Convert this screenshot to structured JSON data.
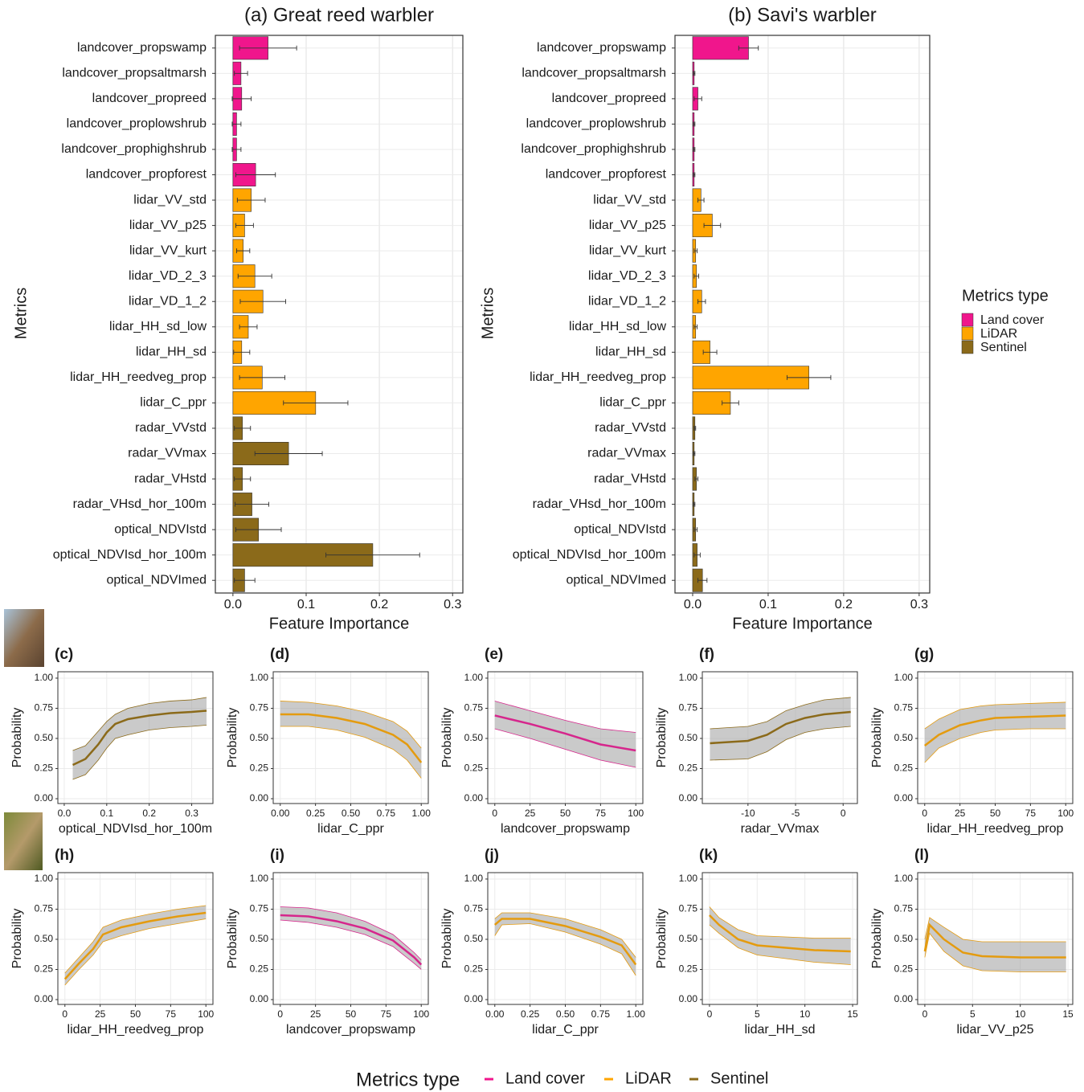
{
  "legend": {
    "title": "Metrics type"
  },
  "chart_data": [
    {
      "type": "bar",
      "orientation": "horizontal",
      "title": "(a) Great reed warbler",
      "xlabel": "Feature Importance",
      "ylabel": "Metrics",
      "categories": [
        "landcover_propswamp",
        "landcover_propsaltmarsh",
        "landcover_propreed",
        "landcover_proplowshrub",
        "landcover_prophighshrub",
        "landcover_propforest",
        "lidar_VV_std",
        "lidar_VV_p25",
        "lidar_VV_kurt",
        "lidar_VD_2_3",
        "lidar_VD_1_2",
        "lidar_HH_sd_low",
        "lidar_HH_sd",
        "lidar_HH_reedveg_prop",
        "lidar_C_ppr",
        "radar_VVstd",
        "radar_VVmax",
        "radar_VHstd",
        "radar_VHsd_hor_100m",
        "optical_NDVIstd",
        "optical_NDVIsd_hor_100m",
        "optical_NDVImed"
      ],
      "series": [
        {
          "name": "Land cover",
          "color": "#f0168c",
          "values": [
            0.048,
            0.011,
            0.012,
            0.005,
            0.005,
            0.031,
            null,
            null,
            null,
            null,
            null,
            null,
            null,
            null,
            null,
            null,
            null,
            null,
            null,
            null,
            null,
            null
          ],
          "errors": [
            0.039,
            0.009,
            0.013,
            0.006,
            0.006,
            0.027,
            null,
            null,
            null,
            null,
            null,
            null,
            null,
            null,
            null,
            null,
            null,
            null,
            null,
            null,
            null,
            null
          ]
        },
        {
          "name": "LiDAR",
          "color": "#ffa500",
          "values": [
            null,
            null,
            null,
            null,
            null,
            null,
            0.025,
            0.016,
            0.014,
            0.03,
            0.041,
            0.021,
            0.012,
            0.04,
            0.113,
            null,
            null,
            null,
            null,
            null,
            null,
            null
          ],
          "errors": [
            null,
            null,
            null,
            null,
            null,
            null,
            0.019,
            0.012,
            0.009,
            0.023,
            0.031,
            0.012,
            0.011,
            0.031,
            0.044,
            null,
            null,
            null,
            null,
            null,
            null,
            null
          ]
        },
        {
          "name": "Sentinel",
          "color": "#8b6a1a",
          "values": [
            null,
            null,
            null,
            null,
            null,
            null,
            null,
            null,
            null,
            null,
            null,
            null,
            null,
            null,
            null,
            0.013,
            0.076,
            0.013,
            0.026,
            0.035,
            0.191,
            0.016
          ],
          "errors": [
            null,
            null,
            null,
            null,
            null,
            null,
            null,
            null,
            null,
            null,
            null,
            null,
            null,
            null,
            null,
            0.011,
            0.046,
            0.011,
            0.023,
            0.031,
            0.064,
            0.014
          ]
        }
      ],
      "xlim": [
        -0.024,
        0.314
      ],
      "xticks": [
        {
          "value": 0,
          "label": "0.0"
        },
        0.1,
        0.2,
        0.3
      ],
      "grid": true
    },
    {
      "type": "bar",
      "orientation": "horizontal",
      "title": "(b) Savi's warbler",
      "xlabel": "Feature Importance",
      "ylabel": "Metrics",
      "categories": [
        "landcover_propswamp",
        "landcover_propsaltmarsh",
        "landcover_propreed",
        "landcover_proplowshrub",
        "landcover_prophighshrub",
        "landcover_propforest",
        "lidar_VV_std",
        "lidar_VV_p25",
        "lidar_VV_kurt",
        "lidar_VD_2_3",
        "lidar_VD_1_2",
        "lidar_HH_sd_low",
        "lidar_HH_sd",
        "lidar_HH_reedveg_prop",
        "lidar_C_ppr",
        "radar_VVstd",
        "radar_VVmax",
        "radar_VHstd",
        "radar_VHsd_hor_100m",
        "optical_NDVIstd",
        "optical_NDVIsd_hor_100m",
        "optical_NDVImed"
      ],
      "series": [
        {
          "name": "Land cover",
          "color": "#f0168c",
          "values": [
            0.074,
            0.002,
            0.007,
            0.002,
            0.002,
            0.002,
            null,
            null,
            null,
            null,
            null,
            null,
            null,
            null,
            null,
            null,
            null,
            null,
            null,
            null,
            null,
            null
          ],
          "errors": [
            0.013,
            0.001,
            0.005,
            0.001,
            0.001,
            0.001,
            null,
            null,
            null,
            null,
            null,
            null,
            null,
            null,
            null,
            null,
            null,
            null,
            null,
            null,
            null,
            null
          ]
        },
        {
          "name": "LiDAR",
          "color": "#ffa500",
          "values": [
            null,
            null,
            null,
            null,
            null,
            null,
            0.011,
            0.026,
            0.004,
            0.005,
            0.012,
            0.004,
            0.023,
            0.154,
            0.05,
            null,
            null,
            null,
            null,
            null,
            null,
            null
          ],
          "errors": [
            null,
            null,
            null,
            null,
            null,
            null,
            0.004,
            0.011,
            0.002,
            0.003,
            0.005,
            0.002,
            0.009,
            0.029,
            0.011,
            null,
            null,
            null,
            null,
            null,
            null,
            null
          ]
        },
        {
          "name": "Sentinel",
          "color": "#8b6a1a",
          "values": [
            null,
            null,
            null,
            null,
            null,
            null,
            null,
            null,
            null,
            null,
            null,
            null,
            null,
            null,
            null,
            0.003,
            0.002,
            0.005,
            0.002,
            0.004,
            0.006,
            0.013
          ],
          "errors": [
            null,
            null,
            null,
            null,
            null,
            null,
            null,
            null,
            null,
            null,
            null,
            null,
            null,
            null,
            null,
            0.001,
            0.001,
            0.002,
            0.001,
            0.002,
            0.004,
            0.006
          ]
        }
      ],
      "xlim": [
        -0.0234,
        0.314
      ],
      "xticks": [
        {
          "value": 0,
          "label": "0.0"
        },
        0.1,
        0.2,
        0.3
      ],
      "grid": true
    },
    {
      "type": "line",
      "title": "(c)",
      "xlabel": "optical_NDVIsd_hor_100m",
      "ylabel": "Probability",
      "color": "#8b6a1a",
      "x": [
        0.02,
        0.05,
        0.08,
        0.1,
        0.12,
        0.15,
        0.2,
        0.25,
        0.3,
        0.335
      ],
      "values": [
        0.28,
        0.33,
        0.45,
        0.55,
        0.62,
        0.66,
        0.69,
        0.71,
        0.72,
        0.73
      ],
      "lower": [
        0.16,
        0.2,
        0.32,
        0.42,
        0.5,
        0.53,
        0.57,
        0.59,
        0.6,
        0.61
      ],
      "upper": [
        0.4,
        0.44,
        0.56,
        0.64,
        0.7,
        0.75,
        0.79,
        0.81,
        0.82,
        0.84
      ],
      "xlim": [
        -0.015,
        0.35
      ],
      "xticks": [
        {
          "value": 0,
          "label": "0.0"
        },
        0.1,
        0.2,
        0.3
      ],
      "ylim": [
        -0.04,
        1.053
      ],
      "yticks": [
        {
          "value": 0,
          "label": "0.00"
        },
        0.25,
        {
          "value": 0.5,
          "label": "0.50"
        },
        0.75,
        {
          "value": 1,
          "label": "1.00"
        }
      ],
      "grid": true
    },
    {
      "type": "line",
      "title": "(d)",
      "xlabel": "lidar_C_ppr",
      "ylabel": "Probability",
      "color": "#e49b0f",
      "x": [
        0,
        0.2,
        0.4,
        0.6,
        0.8,
        0.9,
        1.0
      ],
      "values": [
        0.7,
        0.7,
        0.67,
        0.62,
        0.53,
        0.45,
        0.3
      ],
      "lower": [
        0.6,
        0.6,
        0.57,
        0.51,
        0.41,
        0.32,
        0.17
      ],
      "upper": [
        0.81,
        0.8,
        0.77,
        0.72,
        0.64,
        0.56,
        0.42
      ],
      "xlim": [
        -0.05,
        1.05
      ],
      "xticks": [
        {
          "value": 0,
          "label": "0.00"
        },
        0.25,
        {
          "value": 0.5,
          "label": "0.50"
        },
        0.75,
        {
          "value": 1,
          "label": "1.00"
        }
      ],
      "ylim": [
        -0.04,
        1.053
      ],
      "yticks": [
        {
          "value": 0,
          "label": "0.00"
        },
        0.25,
        {
          "value": 0.5,
          "label": "0.50"
        },
        0.75,
        {
          "value": 1,
          "label": "1.00"
        }
      ],
      "grid": true
    },
    {
      "type": "line",
      "title": "(e)",
      "xlabel": "landcover_propswamp",
      "ylabel": "Probability",
      "color": "#d6268c",
      "x": [
        0,
        25,
        50,
        75,
        100
      ],
      "values": [
        0.69,
        0.62,
        0.54,
        0.45,
        0.4
      ],
      "lower": [
        0.58,
        0.5,
        0.41,
        0.32,
        0.26
      ],
      "upper": [
        0.81,
        0.73,
        0.65,
        0.58,
        0.55
      ],
      "xlim": [
        -5,
        105
      ],
      "xticks": [
        0,
        25,
        50,
        75,
        100
      ],
      "ylim": [
        -0.04,
        1.053
      ],
      "yticks": [
        {
          "value": 0,
          "label": "0.00"
        },
        0.25,
        {
          "value": 0.5,
          "label": "0.50"
        },
        0.75,
        {
          "value": 1,
          "label": "1.00"
        }
      ],
      "grid": true
    },
    {
      "type": "line",
      "title": "(f)",
      "xlabel": "radar_VVmax",
      "ylabel": "Probability",
      "color": "#8b6a1a",
      "x": [
        -14,
        -10,
        -8,
        -6,
        -4,
        -2,
        0.8
      ],
      "values": [
        0.46,
        0.48,
        0.53,
        0.62,
        0.67,
        0.7,
        0.72
      ],
      "lower": [
        0.32,
        0.33,
        0.39,
        0.49,
        0.55,
        0.58,
        0.6
      ],
      "upper": [
        0.58,
        0.6,
        0.64,
        0.73,
        0.78,
        0.82,
        0.84
      ],
      "xlim": [
        -14.8,
        1.5
      ],
      "xticks": [
        -10,
        -5,
        0
      ],
      "ylim": [
        -0.04,
        1.053
      ],
      "yticks": [
        {
          "value": 0,
          "label": "0.00"
        },
        0.25,
        {
          "value": 0.5,
          "label": "0.50"
        },
        0.75,
        {
          "value": 1,
          "label": "1.00"
        }
      ],
      "grid": true
    },
    {
      "type": "line",
      "title": "(g)",
      "xlabel": "lidar_HH_reedveg_prop",
      "ylabel": "Probability",
      "color": "#e49b0f",
      "x": [
        0,
        10,
        25,
        40,
        50,
        75,
        100
      ],
      "values": [
        0.44,
        0.53,
        0.61,
        0.65,
        0.67,
        0.68,
        0.69
      ],
      "lower": [
        0.3,
        0.42,
        0.5,
        0.55,
        0.57,
        0.58,
        0.58
      ],
      "upper": [
        0.58,
        0.66,
        0.74,
        0.77,
        0.78,
        0.79,
        0.8
      ],
      "xlim": [
        -5,
        105
      ],
      "xticks": [
        0,
        25,
        50,
        75,
        100
      ],
      "ylim": [
        -0.04,
        1.053
      ],
      "yticks": [
        {
          "value": 0,
          "label": "0.00"
        },
        0.25,
        {
          "value": 0.5,
          "label": "0.50"
        },
        0.75,
        {
          "value": 1,
          "label": "1.00"
        }
      ],
      "grid": true
    },
    {
      "type": "line",
      "title": "(h)",
      "xlabel": "lidar_HH_reedveg_prop",
      "ylabel": "Probability",
      "color": "#e49b0f",
      "x": [
        0,
        10,
        20,
        27,
        40,
        60,
        80,
        100
      ],
      "values": [
        0.17,
        0.3,
        0.42,
        0.54,
        0.6,
        0.65,
        0.69,
        0.72
      ],
      "lower": [
        0.12,
        0.25,
        0.37,
        0.48,
        0.53,
        0.59,
        0.63,
        0.67
      ],
      "upper": [
        0.22,
        0.35,
        0.48,
        0.6,
        0.66,
        0.71,
        0.75,
        0.78
      ],
      "xlim": [
        -5,
        105
      ],
      "xticks": [
        0,
        25,
        50,
        75,
        100
      ],
      "ylim": [
        -0.04,
        1.053
      ],
      "yticks": [
        {
          "value": 0,
          "label": "0.00"
        },
        0.25,
        {
          "value": 0.5,
          "label": "0.50"
        },
        0.75,
        {
          "value": 1,
          "label": "1.00"
        }
      ],
      "grid": true
    },
    {
      "type": "line",
      "title": "(i)",
      "xlabel": "landcover_propswamp",
      "ylabel": "Probability",
      "color": "#d6268c",
      "x": [
        0,
        20,
        40,
        60,
        80,
        95,
        100
      ],
      "values": [
        0.7,
        0.69,
        0.65,
        0.59,
        0.49,
        0.35,
        0.29
      ],
      "lower": [
        0.66,
        0.64,
        0.6,
        0.54,
        0.44,
        0.3,
        0.25
      ],
      "upper": [
        0.77,
        0.76,
        0.72,
        0.65,
        0.54,
        0.39,
        0.33
      ],
      "xlim": [
        -5,
        105
      ],
      "xticks": [
        0,
        25,
        50,
        75,
        100
      ],
      "ylim": [
        -0.04,
        1.053
      ],
      "yticks": [
        {
          "value": 0,
          "label": "0.00"
        },
        0.25,
        {
          "value": 0.5,
          "label": "0.50"
        },
        0.75,
        {
          "value": 1,
          "label": "1.00"
        }
      ],
      "grid": true
    },
    {
      "type": "line",
      "title": "(j)",
      "xlabel": "lidar_C_ppr",
      "ylabel": "Probability",
      "color": "#e49b0f",
      "x": [
        0,
        0.05,
        0.25,
        0.5,
        0.75,
        0.9,
        1.0
      ],
      "values": [
        0.62,
        0.67,
        0.67,
        0.61,
        0.52,
        0.45,
        0.29
      ],
      "lower": [
        0.53,
        0.62,
        0.63,
        0.56,
        0.46,
        0.38,
        0.2
      ],
      "upper": [
        0.67,
        0.72,
        0.72,
        0.67,
        0.58,
        0.5,
        0.35
      ],
      "xlim": [
        -0.05,
        1.05
      ],
      "xticks": [
        {
          "value": 0,
          "label": "0.00"
        },
        0.25,
        {
          "value": 0.5,
          "label": "0.50"
        },
        0.75,
        {
          "value": 1,
          "label": "1.00"
        }
      ],
      "ylim": [
        -0.04,
        1.053
      ],
      "yticks": [
        {
          "value": 0,
          "label": "0.00"
        },
        0.25,
        {
          "value": 0.5,
          "label": "0.50"
        },
        0.75,
        {
          "value": 1,
          "label": "1.00"
        }
      ],
      "grid": true
    },
    {
      "type": "line",
      "title": "(k)",
      "xlabel": "lidar_HH_sd",
      "ylabel": "Probability",
      "color": "#e49b0f",
      "x": [
        0,
        1,
        3,
        5,
        8,
        11,
        14.8
      ],
      "values": [
        0.7,
        0.62,
        0.5,
        0.45,
        0.43,
        0.41,
        0.4
      ],
      "lower": [
        0.62,
        0.55,
        0.43,
        0.37,
        0.34,
        0.31,
        0.29
      ],
      "upper": [
        0.77,
        0.68,
        0.58,
        0.53,
        0.52,
        0.51,
        0.51
      ],
      "xlim": [
        -0.75,
        15.5
      ],
      "xticks": [
        0,
        5,
        10,
        15
      ],
      "ylim": [
        -0.04,
        1.053
      ],
      "yticks": [
        {
          "value": 0,
          "label": "0.00"
        },
        0.25,
        {
          "value": 0.5,
          "label": "0.50"
        },
        0.75,
        {
          "value": 1,
          "label": "1.00"
        }
      ],
      "grid": true
    },
    {
      "type": "line",
      "title": "(l)",
      "xlabel": "lidar_VV_p25",
      "ylabel": "Probability",
      "color": "#e49b0f",
      "x": [
        0,
        0.5,
        2,
        4,
        6,
        10,
        14.8
      ],
      "values": [
        0.4,
        0.62,
        0.5,
        0.39,
        0.36,
        0.35,
        0.35
      ],
      "lower": [
        0.35,
        0.55,
        0.4,
        0.28,
        0.24,
        0.23,
        0.23
      ],
      "upper": [
        0.5,
        0.68,
        0.6,
        0.5,
        0.48,
        0.48,
        0.48
      ],
      "xlim": [
        -0.75,
        15.5
      ],
      "xticks": [
        0,
        5,
        10,
        15
      ],
      "ylim": [
        -0.04,
        1.053
      ],
      "yticks": [
        {
          "value": 0,
          "label": "0.00"
        },
        0.25,
        {
          "value": 0.5,
          "label": "0.50"
        },
        0.75,
        {
          "value": 1,
          "label": "1.00"
        }
      ],
      "grid": true
    }
  ]
}
